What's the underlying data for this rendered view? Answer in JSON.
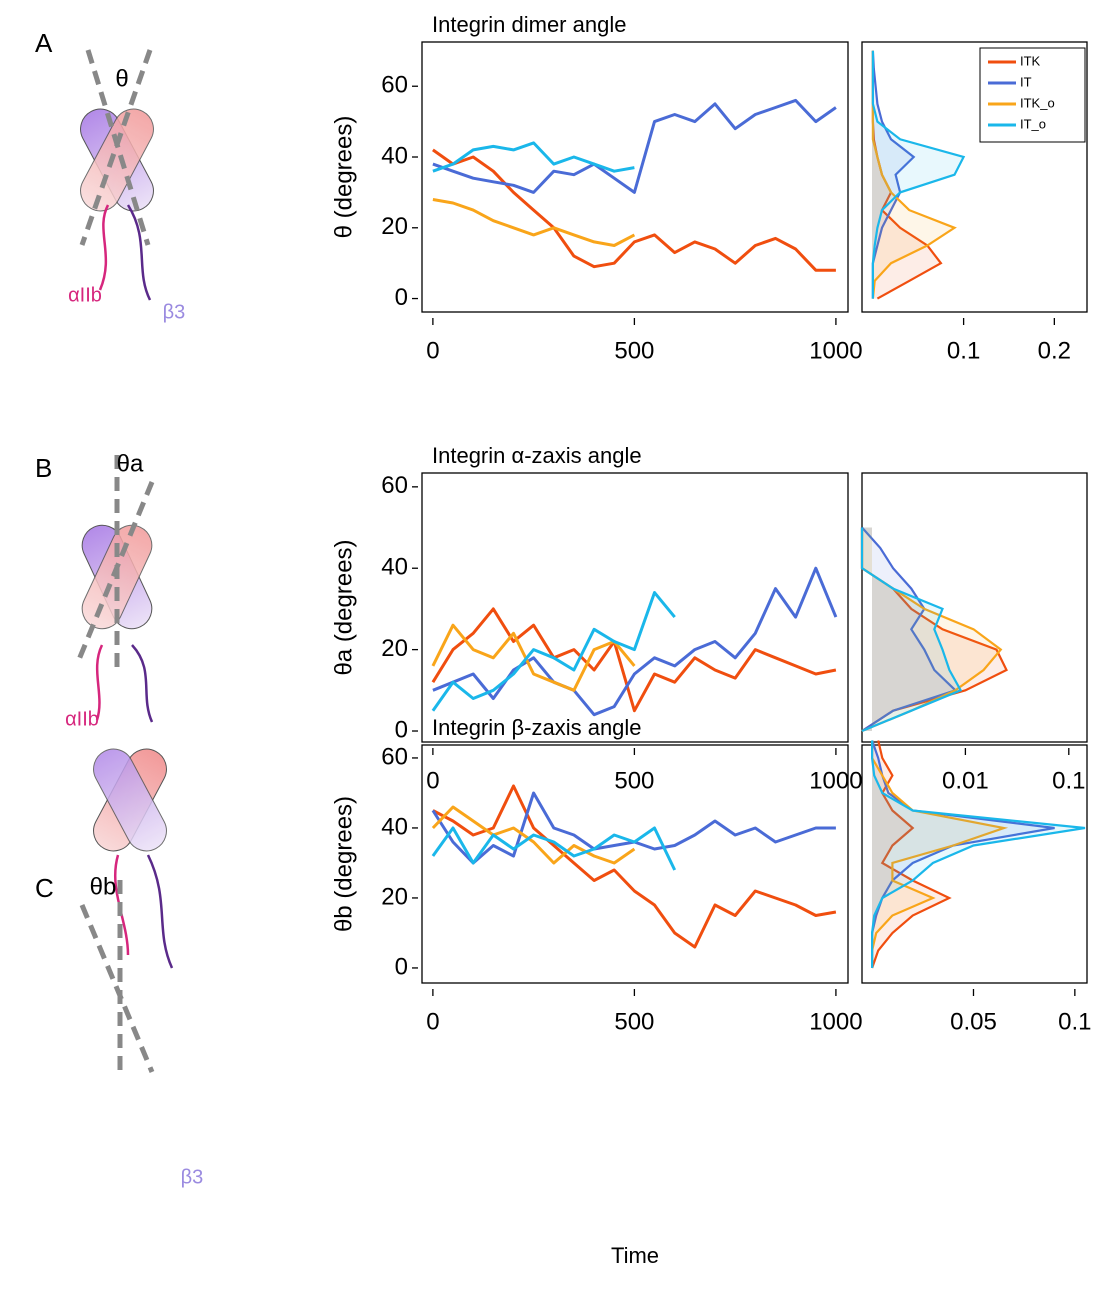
{
  "panels": [
    {
      "letter": "A",
      "angle": "θ",
      "alpha": "αIIb",
      "beta": "β3"
    },
    {
      "letter": "B",
      "angle": "θa",
      "alpha": "αIIb"
    },
    {
      "letter": "C",
      "angle": "θb",
      "beta": "β3"
    }
  ],
  "chart_data": [
    {
      "type": "line",
      "title": "Integrin dimer angle",
      "ylabel": "θ (degrees)",
      "xlim": [
        -27,
        1030
      ],
      "ylim": [
        -3.8,
        72.5
      ],
      "xticks": [
        0,
        500,
        1000
      ],
      "yticks": [
        0,
        20,
        40,
        60
      ],
      "series": [
        {
          "color": "#f04e0f",
          "x": [
            0,
            50,
            100,
            150,
            200,
            250,
            300,
            350,
            400,
            450,
            500,
            550,
            600,
            650,
            700,
            750,
            800,
            850,
            900,
            950,
            1000
          ],
          "values": [
            42,
            38,
            40,
            36,
            30,
            25,
            20,
            12,
            9,
            10,
            16,
            18,
            13,
            16,
            14,
            10,
            15,
            17,
            14,
            8,
            8
          ]
        },
        {
          "color": "#4a6bd6",
          "x": [
            0,
            50,
            100,
            150,
            200,
            250,
            300,
            350,
            400,
            450,
            500,
            550,
            600,
            650,
            700,
            750,
            800,
            850,
            900,
            950,
            1000
          ],
          "values": [
            38,
            36,
            34,
            33,
            32,
            30,
            36,
            35,
            38,
            34,
            30,
            50,
            52,
            50,
            55,
            48,
            52,
            54,
            56,
            50,
            54
          ]
        },
        {
          "color": "#f9a51a",
          "x": [
            0,
            50,
            100,
            150,
            200,
            250,
            300,
            350,
            400,
            450,
            500
          ],
          "values": [
            28,
            27,
            25,
            22,
            20,
            18,
            20,
            18,
            16,
            15,
            18
          ]
        },
        {
          "color": "#1ab7ea",
          "x": [
            0,
            50,
            100,
            150,
            200,
            250,
            300,
            350,
            400,
            450,
            500
          ],
          "values": [
            36,
            38,
            42,
            43,
            42,
            44,
            38,
            40,
            38,
            36,
            37
          ]
        }
      ]
    },
    {
      "type": "density",
      "xlim": [
        -0.012,
        0.236
      ],
      "ylim": [
        -3.8,
        72.5
      ],
      "xticks": [
        0.1,
        0.2
      ],
      "legend": "upper right",
      "series": [
        {
          "name": "ITK",
          "color": "#f04e0f",
          "y": [
            0,
            5,
            10,
            15,
            20,
            25,
            30,
            35,
            40,
            45,
            50,
            55,
            60,
            65,
            70
          ],
          "values": [
            0.005,
            0.04,
            0.075,
            0.06,
            0.03,
            0.01,
            0.02,
            0.01,
            0.005,
            0.001,
            0,
            0,
            0,
            0,
            0
          ]
        },
        {
          "name": "IT",
          "color": "#4a6bd6",
          "y": [
            0,
            5,
            10,
            15,
            20,
            25,
            30,
            35,
            40,
            45,
            50,
            55,
            60,
            65,
            70
          ],
          "values": [
            0,
            0,
            0,
            0.005,
            0.01,
            0.02,
            0.03,
            0.025,
            0.045,
            0.02,
            0.01,
            0.005,
            0.003,
            0.001,
            0
          ]
        },
        {
          "name": "ITK_o",
          "color": "#f9a51a",
          "y": [
            0,
            5,
            10,
            15,
            20,
            25,
            30,
            35,
            40,
            45,
            50,
            55,
            60,
            65,
            70
          ],
          "values": [
            0,
            0.002,
            0.02,
            0.06,
            0.09,
            0.04,
            0.02,
            0.01,
            0.005,
            0,
            0,
            0,
            0,
            0,
            0
          ]
        },
        {
          "name": "IT_o",
          "color": "#1ab7ea",
          "y": [
            0,
            5,
            10,
            15,
            20,
            25,
            30,
            35,
            40,
            45,
            50,
            55,
            60,
            65,
            70
          ],
          "values": [
            0,
            0,
            0,
            0.002,
            0.005,
            0.01,
            0.03,
            0.09,
            0.1,
            0.03,
            0.005,
            0,
            0,
            0,
            0
          ]
        }
      ]
    },
    {
      "type": "line",
      "title": "Integrin α-zaxis angle",
      "ylabel": "θa (degrees)",
      "xlim": [
        -27,
        1030
      ],
      "ylim": [
        -2.7,
        63.4
      ],
      "xticks": [
        0,
        500,
        1000
      ],
      "yticks": [
        0,
        20,
        40,
        60
      ],
      "series": [
        {
          "color": "#f04e0f",
          "x": [
            0,
            50,
            100,
            150,
            200,
            250,
            300,
            350,
            400,
            450,
            500,
            550,
            600,
            650,
            700,
            750,
            800,
            850,
            900,
            950,
            1000
          ],
          "values": [
            12,
            20,
            24,
            30,
            22,
            26,
            18,
            20,
            15,
            22,
            5,
            14,
            12,
            18,
            15,
            13,
            20,
            18,
            16,
            14,
            15
          ]
        },
        {
          "color": "#4a6bd6",
          "x": [
            0,
            50,
            100,
            150,
            200,
            250,
            300,
            350,
            400,
            450,
            500,
            550,
            600,
            650,
            700,
            750,
            800,
            850,
            900,
            950,
            1000
          ],
          "values": [
            10,
            12,
            14,
            8,
            15,
            18,
            12,
            10,
            4,
            6,
            14,
            18,
            16,
            20,
            22,
            18,
            24,
            35,
            28,
            40,
            28
          ]
        },
        {
          "color": "#f9a51a",
          "x": [
            0,
            50,
            100,
            150,
            200,
            250,
            300,
            350,
            400,
            450,
            500
          ],
          "values": [
            16,
            26,
            20,
            18,
            24,
            14,
            12,
            10,
            20,
            22,
            16
          ]
        },
        {
          "color": "#1ab7ea",
          "x": [
            0,
            50,
            100,
            150,
            200,
            250,
            300,
            350,
            400,
            450,
            500,
            550,
            600
          ],
          "values": [
            5,
            12,
            8,
            10,
            14,
            20,
            18,
            15,
            25,
            22,
            20,
            34,
            28
          ]
        }
      ]
    },
    {
      "type": "density",
      "xscale": "log",
      "xlim": [
        0.001,
        0.15
      ],
      "ylim": [
        -2.7,
        63.4
      ],
      "xticks": [
        0.01,
        0.1
      ],
      "series": [
        {
          "color": "#f04e0f",
          "y": [
            0,
            5,
            10,
            15,
            20,
            25,
            30,
            35,
            40,
            45,
            50
          ],
          "values": [
            0.001,
            0.002,
            0.01,
            0.025,
            0.02,
            0.006,
            0.003,
            0.002,
            0.001,
            0.001,
            0.001
          ]
        },
        {
          "color": "#4a6bd6",
          "y": [
            0,
            5,
            10,
            15,
            20,
            25,
            30,
            35,
            40,
            45,
            50
          ],
          "values": [
            0.001,
            0.002,
            0.008,
            0.005,
            0.004,
            0.003,
            0.004,
            0.003,
            0.002,
            0.0015,
            0.001
          ]
        },
        {
          "color": "#f9a51a",
          "y": [
            0,
            5,
            10,
            15,
            20,
            25,
            30,
            35,
            40,
            45,
            50
          ],
          "values": [
            0.001,
            0.003,
            0.008,
            0.015,
            0.022,
            0.012,
            0.004,
            0.002,
            0.001,
            0.001,
            0.001
          ]
        },
        {
          "color": "#1ab7ea",
          "y": [
            0,
            5,
            10,
            15,
            20,
            25,
            30,
            35,
            40,
            45,
            50
          ],
          "values": [
            0.001,
            0.003,
            0.009,
            0.007,
            0.006,
            0.005,
            0.006,
            0.002,
            0.001,
            0.001,
            0.001
          ]
        }
      ]
    },
    {
      "type": "line",
      "title": "Integrin β-zaxis angle",
      "ylabel": "θb  (degrees)",
      "xlabel": "Time",
      "xlim": [
        -27,
        1030
      ],
      "ylim": [
        -4.3,
        63.7
      ],
      "xticks": [
        0,
        500,
        1000
      ],
      "yticks": [
        0,
        20,
        40,
        60
      ],
      "series": [
        {
          "color": "#f04e0f",
          "x": [
            0,
            50,
            100,
            150,
            200,
            250,
            300,
            350,
            400,
            450,
            500,
            550,
            600,
            650,
            700,
            750,
            800,
            850,
            900,
            950,
            1000
          ],
          "values": [
            45,
            42,
            38,
            40,
            52,
            40,
            35,
            30,
            25,
            28,
            22,
            18,
            10,
            6,
            18,
            15,
            22,
            20,
            18,
            15,
            16
          ]
        },
        {
          "color": "#4a6bd6",
          "x": [
            0,
            50,
            100,
            150,
            200,
            250,
            300,
            350,
            400,
            450,
            500,
            550,
            600,
            650,
            700,
            750,
            800,
            850,
            900,
            950,
            1000
          ],
          "values": [
            45,
            36,
            30,
            35,
            32,
            50,
            40,
            38,
            34,
            35,
            36,
            34,
            35,
            38,
            42,
            38,
            40,
            36,
            38,
            40,
            40
          ]
        },
        {
          "color": "#f9a51a",
          "x": [
            0,
            50,
            100,
            150,
            200,
            250,
            300,
            350,
            400,
            450,
            500
          ],
          "values": [
            40,
            46,
            42,
            38,
            40,
            36,
            30,
            35,
            32,
            30,
            34
          ]
        },
        {
          "color": "#1ab7ea",
          "x": [
            0,
            50,
            100,
            150,
            200,
            250,
            300,
            350,
            400,
            450,
            500,
            550,
            600
          ],
          "values": [
            32,
            40,
            30,
            38,
            34,
            38,
            36,
            32,
            34,
            38,
            36,
            40,
            28
          ]
        }
      ]
    },
    {
      "type": "density",
      "xlim": [
        -0.005,
        0.106
      ],
      "ylim": [
        -4.3,
        63.7
      ],
      "xticks": [
        0.05,
        0.1
      ],
      "series": [
        {
          "color": "#f04e0f",
          "y": [
            0,
            5,
            10,
            15,
            20,
            25,
            30,
            35,
            40,
            45,
            50,
            55,
            60,
            65
          ],
          "values": [
            0,
            0.003,
            0.01,
            0.02,
            0.038,
            0.02,
            0.005,
            0.01,
            0.02,
            0.01,
            0.005,
            0.01,
            0.005,
            0.003
          ]
        },
        {
          "color": "#4a6bd6",
          "y": [
            0,
            5,
            10,
            15,
            20,
            25,
            30,
            35,
            40,
            45,
            50,
            55,
            60,
            65
          ],
          "values": [
            0,
            0,
            0,
            0.002,
            0.005,
            0.01,
            0.02,
            0.04,
            0.09,
            0.02,
            0.008,
            0.005,
            0.003,
            0
          ]
        },
        {
          "color": "#f9a51a",
          "y": [
            0,
            5,
            10,
            15,
            20,
            25,
            30,
            35,
            40,
            45,
            50,
            55,
            60,
            65
          ],
          "values": [
            0,
            0,
            0.002,
            0.01,
            0.03,
            0.01,
            0.01,
            0.04,
            0.065,
            0.02,
            0.01,
            0.005,
            0,
            0
          ]
        },
        {
          "color": "#1ab7ea",
          "y": [
            0,
            5,
            10,
            15,
            20,
            25,
            30,
            35,
            40,
            45,
            50,
            55,
            60,
            65
          ],
          "values": [
            0,
            0,
            0,
            0.001,
            0.005,
            0.02,
            0.03,
            0.05,
            0.105,
            0.02,
            0.005,
            0.001,
            0,
            0
          ]
        }
      ]
    }
  ]
}
